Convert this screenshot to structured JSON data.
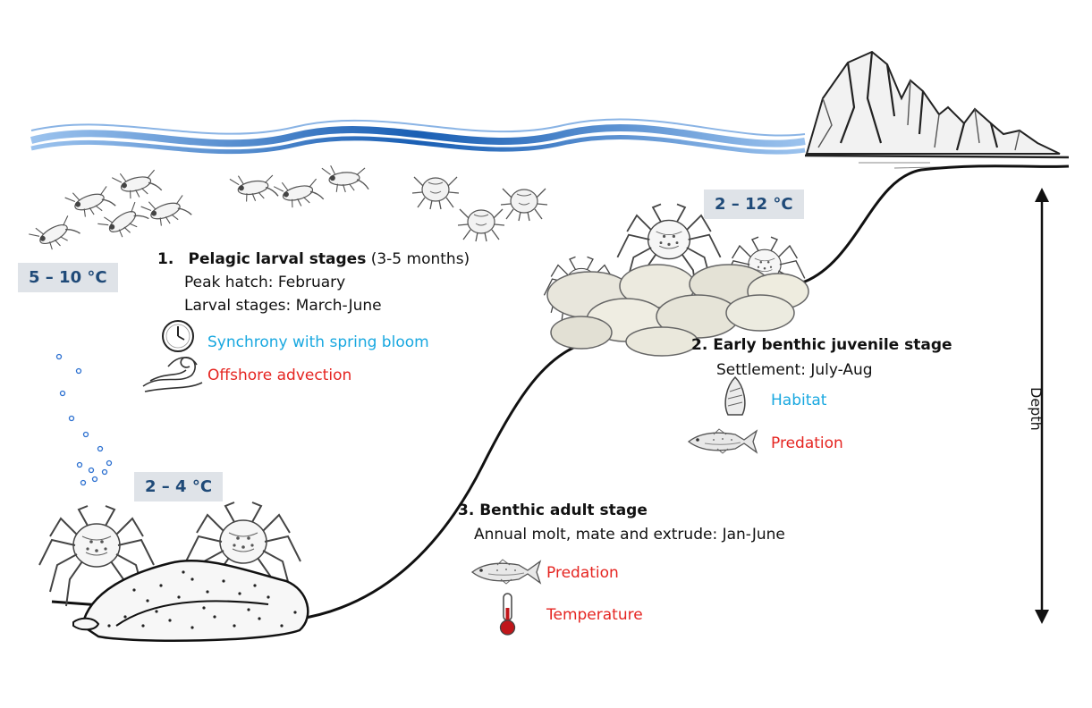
{
  "temperatures": {
    "pelagic": "5 – 10 °C",
    "juvenile": "2 – 12 °C",
    "adult": "2 – 4 °C"
  },
  "stage1": {
    "number": "1.",
    "title": "Pelagic larval stages",
    "duration": "(3-5 months)",
    "line1": "Peak hatch: February",
    "line2": "Larval stages: March-June",
    "positive": "Synchrony with spring bloom",
    "negative": "Offshore advection"
  },
  "stage2": {
    "title": "2. Early benthic juvenile stage",
    "line1": "Settlement: July-Aug",
    "positive": "Habitat",
    "negative": "Predation"
  },
  "stage3": {
    "title": "3. Benthic adult stage",
    "line1": "Annual molt, mate and extrude: Jan-June",
    "negative1": "Predation",
    "negative2": "Temperature"
  },
  "axis": {
    "depth_label": "Depth"
  },
  "colors": {
    "positive": "#19a8e0",
    "negative": "#e52521",
    "wave": "#1a5fb4",
    "temp_box": "#dfe3e8"
  },
  "icons": [
    "wave-icon",
    "mountain-icon",
    "larva-icon",
    "crab-icon",
    "clock-icon",
    "current-icon",
    "snail-icon",
    "fish-icon",
    "thermometer-icon",
    "bubble-icon",
    "rock-icon"
  ]
}
